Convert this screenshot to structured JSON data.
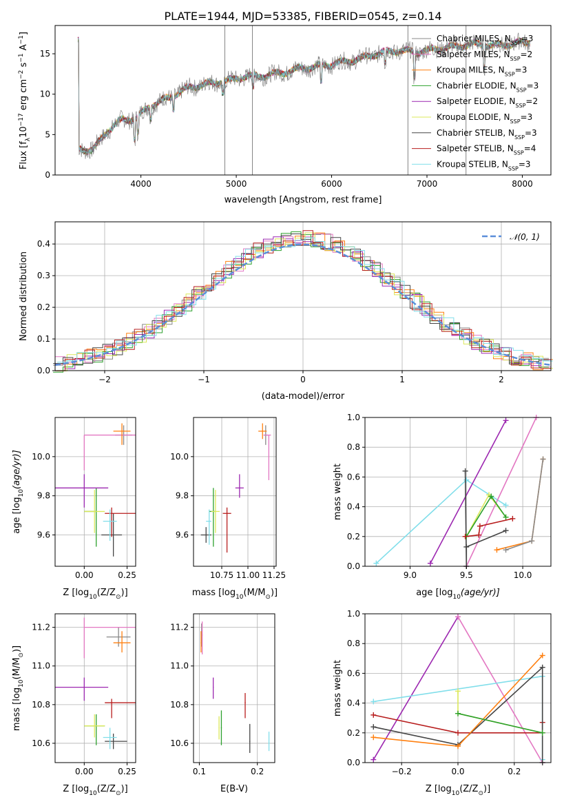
{
  "title": "PLATE=1944, MJD=53385, FIBERID=0545, z=0.14",
  "colors": {
    "Chabrier MILES": "#888888",
    "Salpeter MILES": "#e377c2",
    "Kroupa MILES": "#ff7f0e",
    "Chabrier ELODIE": "#2ca02c",
    "Salpeter ELODIE": "#9c27b0",
    "Kroupa ELODIE": "#dbe85a",
    "Chabrier STELIB": "#444444",
    "Salpeter STELIB": "#b71c1c",
    "Kroupa STELIB": "#80deea",
    "normal": "#5b8ed9",
    "grid": "#b0b0b0"
  },
  "models": [
    {
      "name": "Chabrier MILES",
      "nssp": "3",
      "color": "#888888"
    },
    {
      "name": "Salpeter MILES",
      "nssp": "2",
      "color": "#e377c2"
    },
    {
      "name": "Kroupa MILES",
      "nssp": "3",
      "color": "#ff7f0e"
    },
    {
      "name": "Chabrier ELODIE",
      "nssp": "3",
      "color": "#2ca02c"
    },
    {
      "name": "Salpeter ELODIE",
      "nssp": "2",
      "color": "#9c27b0"
    },
    {
      "name": "Kroupa ELODIE",
      "nssp": "3",
      "color": "#dbe85a"
    },
    {
      "name": "Chabrier STELIB",
      "nssp": "3",
      "color": "#444444"
    },
    {
      "name": "Salpeter STELIB",
      "nssp": "4",
      "color": "#b71c1c"
    },
    {
      "name": "Kroupa STELIB",
      "nssp": "3",
      "color": "#80deea"
    }
  ],
  "chart_data": [
    {
      "id": "spectrum",
      "type": "line",
      "title": "PLATE=1944, MJD=53385, FIBERID=0545, z=0.14",
      "xlabel": "wavelength [Angstrom, rest frame]",
      "ylabel": "Flux [f_λ 10^-17 erg cm^-2 s^-1 A^-1]",
      "xlim": [
        3100,
        8300
      ],
      "ylim": [
        0,
        18.5
      ],
      "xticks": [
        4000,
        5000,
        6000,
        7000,
        8000
      ],
      "yticks": [
        0,
        5,
        10,
        15
      ],
      "legend": "upper right",
      "x": [
        3350,
        3500,
        3650,
        3800,
        3950,
        4100,
        4300,
        4500,
        4700,
        4900,
        5100,
        5300,
        5500,
        5700,
        5900,
        6100,
        6300,
        6500,
        6700,
        6900,
        7100,
        7300,
        7500,
        7700,
        7900,
        8050
      ],
      "series": [
        {
          "name": "data",
          "values": [
            3.2,
            3.1,
            5.5,
            6.8,
            7.0,
            8.6,
            9.6,
            10.8,
            11.3,
            11.6,
            12.2,
            12.3,
            12.7,
            13.2,
            13.5,
            13.9,
            14.4,
            15.1,
            15.4,
            15.2,
            15.6,
            15.9,
            16.2,
            16.0,
            16.2,
            16.5
          ]
        },
        {
          "name": "model",
          "values": [
            3.0,
            3.0,
            5.2,
            6.5,
            7.0,
            8.5,
            9.7,
            10.8,
            11.4,
            11.7,
            12.1,
            12.4,
            12.8,
            13.2,
            13.6,
            14.0,
            14.5,
            14.9,
            15.3,
            15.4,
            15.6,
            15.8,
            16.0,
            16.1,
            16.2,
            16.4
          ]
        }
      ]
    },
    {
      "id": "residuals",
      "type": "histogram",
      "xlabel": "(data-model)/error",
      "ylabel": "Normed distribution",
      "xlim": [
        -2.5,
        2.5
      ],
      "ylim": [
        0,
        0.47
      ],
      "xticks": [
        -2,
        -1,
        0,
        1,
        2
      ],
      "yticks": [
        0.0,
        0.1,
        0.2,
        0.3,
        0.4
      ],
      "legend": "upper right",
      "series": [
        {
          "name": "𝒩(0, 1)",
          "values": "gaussian mean 0 sigma 1"
        }
      ]
    },
    {
      "id": "age-vs-Z",
      "type": "scatter",
      "xlabel": "Z [log10(Z/Z⊙)]",
      "ylabel": "age [log10(age/yr)]",
      "xlim": [
        -0.17,
        0.3
      ],
      "ylim": [
        9.44,
        10.2
      ],
      "xticks": [
        0.0,
        0.25
      ],
      "yticks": [
        9.6,
        9.8,
        10.0
      ],
      "points": [
        {
          "model": "Chabrier MILES",
          "x": 0.23,
          "y": 10.11
        },
        {
          "model": "Salpeter MILES",
          "x": 0.0,
          "y": 10.11
        },
        {
          "model": "Kroupa MILES",
          "x": 0.22,
          "y": 10.13
        },
        {
          "model": "Chabrier ELODIE",
          "x": 0.07,
          "y": 9.72
        },
        {
          "model": "Salpeter ELODIE",
          "x": 0.0,
          "y": 9.84
        },
        {
          "model": "Kroupa ELODIE",
          "x": 0.06,
          "y": 9.72
        },
        {
          "model": "Chabrier STELIB",
          "x": 0.17,
          "y": 9.6
        },
        {
          "model": "Salpeter STELIB",
          "x": 0.16,
          "y": 9.71
        },
        {
          "model": "Kroupa STELIB",
          "x": 0.15,
          "y": 9.67
        }
      ]
    },
    {
      "id": "age-vs-mass",
      "type": "scatter",
      "xlabel": "mass [log10(M/M⊙)]",
      "xlim": [
        10.48,
        11.27
      ],
      "ylim": [
        9.44,
        10.2
      ],
      "xticks": [
        10.75,
        11.0,
        11.25
      ],
      "yticks": [
        9.6,
        9.8,
        10.0
      ],
      "points": [
        {
          "model": "Chabrier MILES",
          "x": 11.17,
          "y": 10.11
        },
        {
          "model": "Salpeter MILES",
          "x": 11.2,
          "y": 10.11
        },
        {
          "model": "Kroupa MILES",
          "x": 11.14,
          "y": 10.13
        },
        {
          "model": "Chabrier ELODIE",
          "x": 10.67,
          "y": 9.72
        },
        {
          "model": "Salpeter ELODIE",
          "x": 10.92,
          "y": 9.84
        },
        {
          "model": "Kroupa ELODIE",
          "x": 10.69,
          "y": 9.72
        },
        {
          "model": "Chabrier STELIB",
          "x": 10.6,
          "y": 9.6
        },
        {
          "model": "Salpeter STELIB",
          "x": 10.8,
          "y": 9.71
        },
        {
          "model": "Kroupa STELIB",
          "x": 10.63,
          "y": 9.67
        }
      ]
    },
    {
      "id": "mass-weight-vs-age",
      "type": "line",
      "xlabel": "age [log10(age/yr)]",
      "ylabel": "mass weight",
      "xlim": [
        8.6,
        10.25
      ],
      "ylim": [
        0,
        1.0
      ],
      "xticks": [
        9.0,
        9.5,
        10.0
      ],
      "yticks": [
        0.0,
        0.2,
        0.4,
        0.6,
        0.8,
        1.0
      ],
      "series": [
        {
          "name": "Kroupa STELIB",
          "x": [
            8.7,
            9.5,
            9.85
          ],
          "values": [
            0.02,
            0.58,
            0.41
          ]
        },
        {
          "name": "Salpeter ELODIE",
          "x": [
            9.18,
            9.85
          ],
          "values": [
            0.02,
            0.98
          ]
        },
        {
          "name": "Salpeter MILES",
          "x": [
            9.5,
            10.12
          ],
          "values": [
            0.0,
            1.0
          ]
        },
        {
          "name": "Chabrier STELIB",
          "x": [
            9.49,
            9.5,
            9.5,
            9.85
          ],
          "values": [
            0.64,
            0.0,
            0.13,
            0.24
          ]
        },
        {
          "name": "Kroupa ELODIE",
          "x": [
            9.5,
            9.7,
            9.85
          ],
          "values": [
            0.2,
            0.48,
            0.33
          ]
        },
        {
          "name": "Chabrier ELODIE",
          "x": [
            9.5,
            9.72,
            9.85
          ],
          "values": [
            0.2,
            0.47,
            0.33
          ]
        },
        {
          "name": "Salpeter STELIB",
          "x": [
            9.49,
            9.61,
            9.62,
            9.91
          ],
          "values": [
            0.2,
            0.21,
            0.27,
            0.32
          ]
        },
        {
          "name": "Kroupa MILES",
          "x": [
            9.77,
            10.08,
            10.18
          ],
          "values": [
            0.11,
            0.17,
            0.72
          ]
        },
        {
          "name": "Chabrier MILES",
          "x": [
            9.85,
            10.08,
            10.18
          ],
          "values": [
            0.11,
            0.17,
            0.72
          ]
        }
      ]
    },
    {
      "id": "mass-vs-Z",
      "type": "scatter",
      "xlabel": "Z [log10(Z/Z⊙)]",
      "ylabel": "mass [log10(M/M⊙)]",
      "xlim": [
        -0.17,
        0.3
      ],
      "ylim": [
        10.5,
        11.27
      ],
      "xticks": [
        0.0,
        0.25
      ],
      "yticks": [
        10.6,
        10.8,
        11.0,
        11.2
      ],
      "points": [
        {
          "model": "Chabrier MILES",
          "x": 0.2,
          "y": 11.15
        },
        {
          "model": "Salpeter MILES",
          "x": 0.0,
          "y": 11.2
        },
        {
          "model": "Kroupa MILES",
          "x": 0.22,
          "y": 11.12
        },
        {
          "model": "Chabrier ELODIE",
          "x": 0.07,
          "y": 10.69
        },
        {
          "model": "Salpeter ELODIE",
          "x": 0.0,
          "y": 10.89
        },
        {
          "model": "Kroupa ELODIE",
          "x": 0.06,
          "y": 10.69
        },
        {
          "model": "Chabrier STELIB",
          "x": 0.17,
          "y": 10.61
        },
        {
          "model": "Salpeter STELIB",
          "x": 0.16,
          "y": 10.81
        },
        {
          "model": "Kroupa STELIB",
          "x": 0.15,
          "y": 10.63
        }
      ]
    },
    {
      "id": "mass-vs-ebv",
      "type": "scatter",
      "xlabel": "E(B-V)",
      "xlim": [
        0.09,
        0.23
      ],
      "ylim": [
        10.5,
        11.27
      ],
      "xticks": [
        0.1,
        0.2
      ],
      "yticks": [
        10.6,
        10.8,
        11.0,
        11.2
      ],
      "points": [
        {
          "model": "Chabrier MILES",
          "x": 0.104,
          "y": 11.15
        },
        {
          "model": "Salpeter MILES",
          "x": 0.105,
          "y": 11.16
        },
        {
          "model": "Kroupa MILES",
          "x": 0.103,
          "y": 11.12
        },
        {
          "model": "Chabrier ELODIE",
          "x": 0.138,
          "y": 10.68
        },
        {
          "model": "Salpeter ELODIE",
          "x": 0.124,
          "y": 10.89
        },
        {
          "model": "Kroupa ELODIE",
          "x": 0.134,
          "y": 10.68
        },
        {
          "model": "Chabrier STELIB",
          "x": 0.187,
          "y": 10.61
        },
        {
          "model": "Salpeter STELIB",
          "x": 0.179,
          "y": 10.81
        },
        {
          "model": "Kroupa STELIB",
          "x": 0.22,
          "y": 10.6
        }
      ]
    },
    {
      "id": "mass-weight-vs-Z",
      "type": "line",
      "xlabel": "Z [log10(Z/Z⊙)]",
      "ylabel": "mass weight",
      "xlim": [
        -0.33,
        0.33
      ],
      "ylim": [
        0,
        1.0
      ],
      "xticks": [
        -0.2,
        0.0,
        0.2
      ],
      "yticks": [
        0.0,
        0.2,
        0.4,
        0.6,
        0.8,
        1.0
      ],
      "series": [
        {
          "name": "Salpeter ELODIE",
          "x": [
            -0.3,
            0.0
          ],
          "values": [
            0.02,
            0.98
          ]
        },
        {
          "name": "Salpeter MILES",
          "x": [
            0.0,
            0.3
          ],
          "values": [
            0.98,
            0.0
          ]
        },
        {
          "name": "Kroupa STELIB",
          "x": [
            -0.3,
            0.3,
            0.3
          ],
          "values": [
            0.41,
            0.58,
            0.02
          ]
        },
        {
          "name": "Salpeter STELIB",
          "x": [
            -0.3,
            0.0,
            0.3,
            0.3
          ],
          "values": [
            0.32,
            0.2,
            0.2,
            0.27
          ]
        },
        {
          "name": "Chabrier STELIB",
          "x": [
            -0.3,
            0.0,
            0.3,
            0.3
          ],
          "values": [
            0.24,
            0.12,
            0.64,
            0.0
          ]
        },
        {
          "name": "Kroupa MILES",
          "x": [
            -0.3,
            0.0,
            0.3
          ],
          "values": [
            0.17,
            0.11,
            0.72
          ]
        },
        {
          "name": "Kroupa ELODIE",
          "x": [
            0.0,
            0.0,
            0.3
          ],
          "values": [
            0.48,
            0.33,
            0.2
          ]
        },
        {
          "name": "Chabrier ELODIE",
          "x": [
            0.0,
            0.3
          ],
          "values": [
            0.33,
            0.2
          ]
        }
      ]
    }
  ]
}
